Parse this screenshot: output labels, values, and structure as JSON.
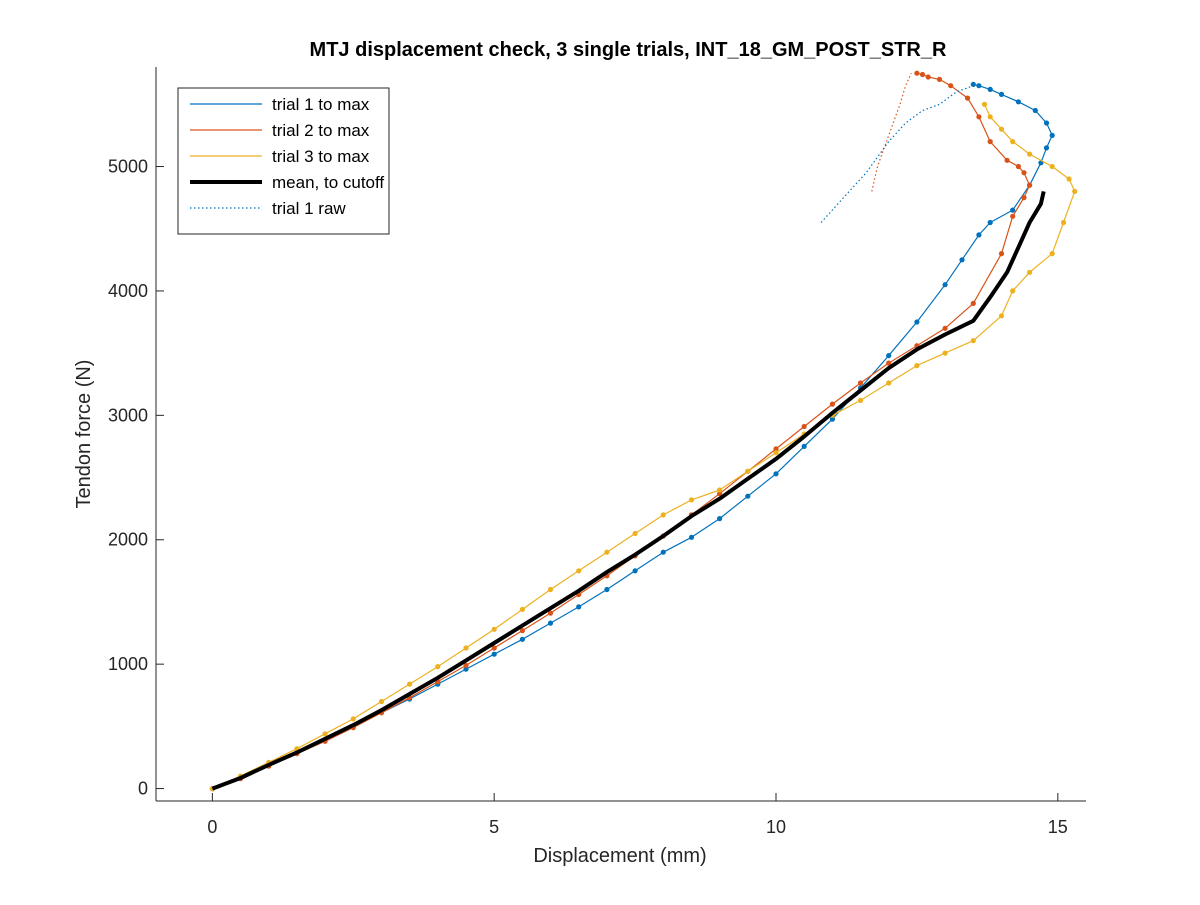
{
  "chart_data": {
    "type": "line",
    "title": "MTJ displacement check, 3 single trials, INT_18_GM_POST_STR_R",
    "xlabel": "Displacement (mm)",
    "ylabel": "Tendon force (N)",
    "xlim": [
      -1,
      15.5
    ],
    "ylim": [
      -100,
      5800
    ],
    "xticks": [
      0,
      5,
      10,
      15
    ],
    "xtick_labels": [
      "0",
      "5",
      "10",
      "15"
    ],
    "yticks": [
      0,
      1000,
      2000,
      3000,
      4000,
      5000
    ],
    "ytick_labels": [
      "0",
      "1000",
      "2000",
      "3000",
      "4000",
      "5000"
    ],
    "grid": false,
    "legend_position": "top-left",
    "colors": {
      "trial1": "#0072BD",
      "trial2": "#D95319",
      "trial3": "#EDB120",
      "mean": "#000000"
    },
    "series": [
      {
        "name": "trial 1 to max",
        "color": "#0072BD",
        "style": "solid",
        "x": [
          0,
          0.5,
          1.0,
          1.5,
          2.0,
          2.5,
          3.0,
          3.5,
          4.0,
          4.5,
          5.0,
          5.5,
          6.0,
          6.5,
          7.0,
          7.5,
          8.0,
          8.5,
          9.0,
          9.5,
          10.0,
          10.5,
          11.0,
          11.5,
          12.0,
          12.5,
          13.0,
          13.3,
          13.6,
          13.8,
          14.2,
          14.5,
          14.7,
          14.8,
          14.9,
          14.8,
          14.6,
          14.3,
          14.0,
          13.8,
          13.6,
          13.5
        ],
        "y": [
          0,
          90,
          190,
          290,
          390,
          500,
          610,
          720,
          840,
          960,
          1080,
          1200,
          1330,
          1460,
          1600,
          1750,
          1900,
          2020,
          2170,
          2350,
          2530,
          2750,
          2970,
          3220,
          3480,
          3750,
          4050,
          4250,
          4450,
          4550,
          4650,
          4850,
          5030,
          5150,
          5250,
          5350,
          5450,
          5520,
          5580,
          5620,
          5650,
          5660
        ]
      },
      {
        "name": "trial 2 to max",
        "color": "#D95319",
        "style": "solid",
        "x": [
          0,
          0.5,
          1.0,
          1.5,
          2.0,
          2.5,
          3.0,
          3.5,
          4.0,
          4.5,
          5.0,
          5.5,
          6.0,
          6.5,
          7.0,
          7.5,
          8.0,
          8.5,
          9.0,
          9.5,
          10.0,
          10.5,
          11.0,
          11.5,
          12.0,
          12.5,
          13.0,
          13.5,
          14.0,
          14.2,
          14.4,
          14.5,
          14.4,
          14.3,
          14.1,
          13.8,
          13.6,
          13.4,
          13.1,
          12.9,
          12.7,
          12.6,
          12.5
        ],
        "y": [
          0,
          80,
          180,
          280,
          380,
          490,
          610,
          730,
          860,
          990,
          1130,
          1270,
          1410,
          1560,
          1710,
          1870,
          2030,
          2200,
          2370,
          2550,
          2730,
          2910,
          3090,
          3260,
          3420,
          3560,
          3700,
          3900,
          4300,
          4600,
          4750,
          4850,
          4950,
          5000,
          5050,
          5200,
          5400,
          5550,
          5650,
          5700,
          5720,
          5740,
          5750
        ]
      },
      {
        "name": "trial 3 to max",
        "color": "#EDB120",
        "style": "solid",
        "x": [
          0,
          0.5,
          1.0,
          1.5,
          2.0,
          2.5,
          3.0,
          3.5,
          4.0,
          4.5,
          5.0,
          5.5,
          6.0,
          6.5,
          7.0,
          7.5,
          8.0,
          8.5,
          9.0,
          9.5,
          10.0,
          10.5,
          11.0,
          11.5,
          12.0,
          12.5,
          13.0,
          13.5,
          14.0,
          14.2,
          14.5,
          14.9,
          15.1,
          15.3,
          15.2,
          14.9,
          14.5,
          14.2,
          14.0,
          13.8,
          13.7
        ],
        "y": [
          0,
          100,
          210,
          320,
          440,
          560,
          700,
          840,
          980,
          1130,
          1280,
          1440,
          1600,
          1750,
          1900,
          2050,
          2200,
          2320,
          2400,
          2550,
          2700,
          2850,
          3000,
          3120,
          3260,
          3400,
          3500,
          3600,
          3800,
          4000,
          4150,
          4300,
          4550,
          4800,
          4900,
          5000,
          5100,
          5200,
          5300,
          5400,
          5500
        ]
      },
      {
        "name": "mean, to cutoff",
        "color": "#000000",
        "style": "thick",
        "x": [
          0,
          0.5,
          1.0,
          1.5,
          2.0,
          2.5,
          3.0,
          3.5,
          4.0,
          4.5,
          5.0,
          5.5,
          6.0,
          6.5,
          7.0,
          7.5,
          8.0,
          8.5,
          9.0,
          9.5,
          10.0,
          10.5,
          11.0,
          11.5,
          12.0,
          12.5,
          13.0,
          13.5,
          13.8,
          14.1,
          14.3,
          14.5,
          14.7,
          14.75
        ],
        "y": [
          0,
          85,
          190,
          290,
          400,
          510,
          630,
          760,
          890,
          1030,
          1170,
          1310,
          1450,
          1590,
          1740,
          1880,
          2030,
          2190,
          2330,
          2490,
          2650,
          2830,
          3020,
          3200,
          3380,
          3530,
          3650,
          3760,
          3950,
          4150,
          4350,
          4550,
          4700,
          4800
        ]
      },
      {
        "name": "trial 1 raw",
        "color": "#0072BD",
        "style": "dotted",
        "x": [
          10.8,
          11.2,
          11.6,
          12.0,
          12.3,
          12.6,
          12.9,
          13.2,
          13.5
        ],
        "y": [
          4550,
          4750,
          4950,
          5200,
          5350,
          5450,
          5500,
          5600,
          5650
        ]
      }
    ],
    "raw_traces": [
      {
        "color": "#D95319",
        "style": "dotted",
        "x": [
          11.7,
          11.8,
          12.0,
          12.2,
          12.3,
          12.4
        ],
        "y": [
          4800,
          5000,
          5250,
          5500,
          5650,
          5750
        ]
      }
    ]
  }
}
